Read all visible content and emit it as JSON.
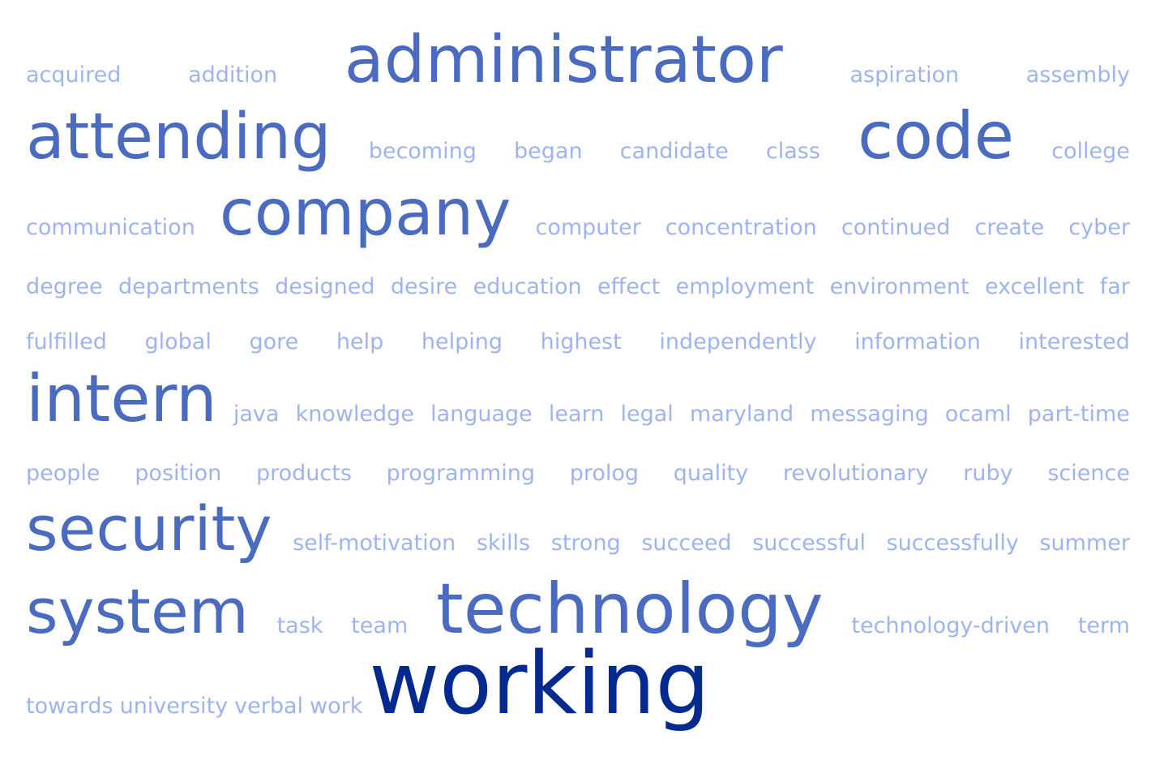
{
  "colors": {
    "small": "#9fb4ef",
    "medium": "#4a6bbf",
    "large": "#042a8f"
  },
  "rows": [
    [
      "acquired",
      "addition",
      "administrator",
      "aspiration",
      "assembly"
    ],
    [
      "attending",
      "becoming",
      "began",
      "candidate",
      "class",
      "code",
      "college"
    ],
    [
      "communication",
      "company",
      "computer",
      "concentration",
      "continued",
      "create",
      "cyber"
    ],
    [
      "degree",
      "departments",
      "designed",
      "desire",
      "education",
      "effect",
      "employment",
      "environment",
      "excellent",
      "far"
    ],
    [
      "fulfilled",
      "global",
      "gore",
      "help",
      "helping",
      "highest",
      "independently",
      "information",
      "interested"
    ],
    [
      "intern",
      "java",
      "knowledge",
      "language",
      "learn",
      "legal",
      "maryland",
      "messaging",
      "ocaml",
      "part-time"
    ],
    [
      "people",
      "position",
      "products",
      "programming",
      "prolog",
      "quality",
      "revolutionary",
      "ruby",
      "science"
    ],
    [
      "security",
      "self-motivation",
      "skills",
      "strong",
      "succeed",
      "successful",
      "successfully",
      "summer"
    ],
    [
      "system",
      "task",
      "team",
      "technology",
      "technology-driven",
      "term"
    ],
    [
      "towards",
      "university",
      "verbal",
      "work",
      "working"
    ]
  ]
}
